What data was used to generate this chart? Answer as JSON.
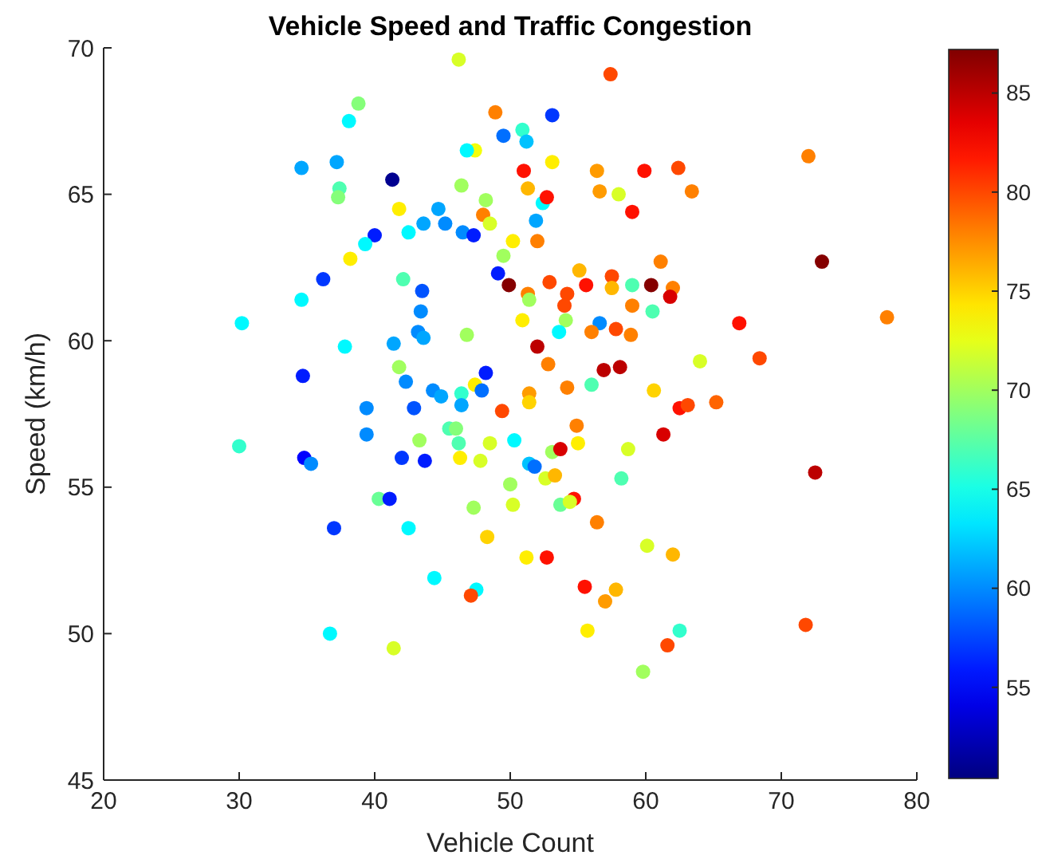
{
  "chart_data": {
    "type": "scatter",
    "title": "Vehicle Speed and Traffic Congestion",
    "xlabel": "Vehicle Count",
    "ylabel": "Speed (km/h)",
    "xlim": [
      20,
      80
    ],
    "xticks": [
      20,
      30,
      40,
      50,
      60,
      70,
      80
    ],
    "ylim": [
      45,
      70
    ],
    "yticks": [
      45,
      50,
      55,
      60,
      65,
      70
    ],
    "clim": [
      50.4,
      87.2
    ],
    "cticks": [
      55,
      60,
      65,
      70,
      75,
      80,
      85
    ],
    "grid": false,
    "marker": "circle",
    "series": [
      {
        "x": [
          46.2,
          57.4,
          38.8,
          38.1,
          48.9,
          53.1,
          49.5,
          50.9,
          51.2,
          47.4,
          46.8,
          37.2,
          34.6,
          41.3,
          46.4,
          37.4,
          37.3,
          41.8,
          44.7,
          45.2,
          43.6,
          40.0,
          39.3,
          42.5,
          46.5,
          47.3,
          38.2,
          36.2,
          42.1,
          34.6,
          43.5,
          43.4,
          30.2,
          43.2,
          43.6,
          41.4,
          37.8,
          46.8,
          41.8,
          51.0,
          51.3,
          48.2,
          48.0,
          48.5,
          50.2,
          52.0,
          51.9,
          52.4,
          49.5,
          49.1,
          49.9,
          51.3,
          51.4,
          50.9,
          52.0,
          72.0,
          53.1,
          56.4,
          59.9,
          62.4,
          56.6,
          58.0,
          63.4,
          52.7,
          59.0,
          61.1,
          73.0,
          55.1,
          52.9,
          55.6,
          57.5,
          57.5,
          59.0,
          60.4,
          62.0,
          61.8,
          54.2,
          54.0,
          59.0,
          60.5,
          54.1,
          56.6,
          53.6,
          56.0,
          57.8,
          58.9,
          66.9,
          77.8,
          68.4,
          64.0,
          58.1,
          56.9,
          52.8,
          56.0,
          54.2,
          51.4,
          51.4,
          60.6,
          62.5,
          63.1,
          65.2,
          54.9,
          55.0,
          61.3,
          58.7,
          53.1,
          53.7,
          51.4,
          51.8,
          52.6,
          53.3,
          58.2,
          72.5,
          54.7,
          53.7,
          54.4,
          56.4,
          51.2,
          52.7,
          60.1,
          62.0,
          55.5,
          57.8,
          57.0,
          71.8,
          55.7,
          62.5,
          61.6,
          59.8,
          34.7,
          42.3,
          48.2,
          47.4,
          47.9,
          44.3,
          44.9,
          46.4,
          46.4,
          42.9,
          39.4,
          49.4,
          39.4,
          43.3,
          45.5,
          46.0,
          46.2,
          48.5,
          50.3,
          30.0,
          34.8,
          35.3,
          42.0,
          43.7,
          46.3,
          47.8,
          50.0,
          40.3,
          41.1,
          47.3,
          50.2,
          37.0,
          42.5,
          48.3,
          44.4,
          47.5,
          47.1,
          36.7,
          41.4
        ],
        "values": [
          69.6,
          69.1,
          68.1,
          67.5,
          67.8,
          67.7,
          67.0,
          67.2,
          66.8,
          66.5,
          66.5,
          66.1,
          65.9,
          65.5,
          65.3,
          65.2,
          64.9,
          64.5,
          64.5,
          64.0,
          64.0,
          63.6,
          63.3,
          63.7,
          63.7,
          63.6,
          62.8,
          62.1,
          62.1,
          61.4,
          61.7,
          61.0,
          60.6,
          60.3,
          60.1,
          59.9,
          59.8,
          60.2,
          59.1,
          65.8,
          65.2,
          64.8,
          64.3,
          64.0,
          63.4,
          63.4,
          64.1,
          64.7,
          62.9,
          62.3,
          61.9,
          61.6,
          61.4,
          60.7,
          59.8,
          66.3,
          66.1,
          65.8,
          65.8,
          65.9,
          65.1,
          65.0,
          65.1,
          64.9,
          64.4,
          62.7,
          62.7,
          62.4,
          62.0,
          61.9,
          62.2,
          61.8,
          61.9,
          61.9,
          61.8,
          61.5,
          61.6,
          61.2,
          61.2,
          61.0,
          60.7,
          60.6,
          60.3,
          60.3,
          60.4,
          60.2,
          60.6,
          60.8,
          59.4,
          59.3,
          59.1,
          59.0,
          59.2,
          58.5,
          58.4,
          58.2,
          57.9,
          58.3,
          57.7,
          57.8,
          57.9,
          57.1,
          56.5,
          56.8,
          56.3,
          56.2,
          56.3,
          55.8,
          55.7,
          55.3,
          55.4,
          55.3,
          55.5,
          54.6,
          54.4,
          54.5,
          53.8,
          52.6,
          52.6,
          53.0,
          52.7,
          51.6,
          51.5,
          51.1,
          50.3,
          50.1,
          50.1,
          49.6,
          48.7,
          58.8,
          58.6,
          58.9,
          58.5,
          58.3,
          58.3,
          58.1,
          58.2,
          57.8,
          57.7,
          57.7,
          57.6,
          56.8,
          56.6,
          57.0,
          57.0,
          56.5,
          56.5,
          56.6,
          56.4,
          56.0,
          55.8,
          56.0,
          55.9,
          56.0,
          55.9,
          55.1,
          54.6,
          54.6,
          54.3,
          54.4,
          53.6,
          53.6,
          53.3,
          51.9,
          51.5,
          51.3,
          50.0,
          49.5
        ],
        "cvalues": [
          72,
          80,
          69,
          64,
          78,
          57,
          59,
          66,
          62,
          73,
          64,
          61,
          61,
          51,
          70,
          67,
          69,
          74,
          61,
          60,
          61,
          56,
          64,
          64,
          60,
          56,
          74,
          57,
          67,
          64,
          58,
          60,
          64,
          60,
          61,
          61,
          64,
          70,
          70,
          82,
          76,
          70,
          78,
          72,
          74,
          78,
          61,
          64,
          70,
          56,
          87,
          78,
          70,
          74,
          85,
          78,
          74,
          77,
          82,
          80,
          77,
          72,
          78,
          82,
          82,
          78,
          87,
          76,
          80,
          82,
          80,
          76,
          67,
          87,
          78,
          84,
          80,
          80,
          78,
          67,
          70,
          60,
          64,
          78,
          80,
          78,
          82,
          78,
          80,
          72,
          85,
          85,
          78,
          67,
          78,
          77,
          75,
          75,
          82,
          80,
          79,
          78,
          74,
          84,
          72,
          70,
          84,
          62,
          59,
          72,
          76,
          67,
          85,
          82,
          68,
          72,
          78,
          74,
          82,
          72,
          76,
          82,
          76,
          77,
          80,
          74,
          66,
          80,
          70,
          56,
          60,
          56,
          74,
          59,
          60,
          61,
          66,
          61,
          58,
          60,
          80,
          60,
          70,
          67,
          69,
          67,
          72,
          64,
          66,
          55,
          60,
          57,
          56,
          74,
          72,
          70,
          68,
          56,
          70,
          72,
          57,
          64,
          75,
          64,
          64,
          80,
          64,
          72
        ]
      }
    ]
  }
}
